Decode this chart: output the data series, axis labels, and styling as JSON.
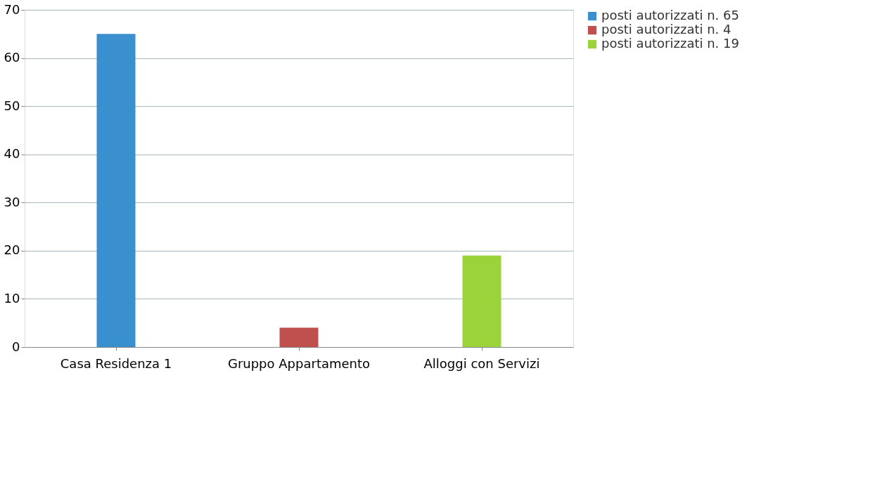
{
  "chart_data": {
    "type": "bar",
    "categories": [
      "Casa Residenza 1",
      "Gruppo Appartamento",
      "Alloggi con Servizi"
    ],
    "series": [
      {
        "name": "posti autorizzati n. 65",
        "color": "#3a8fce",
        "values": [
          65,
          null,
          null
        ]
      },
      {
        "name": "posti autorizzati n. 4",
        "color": "#c0504d",
        "values": [
          null,
          4,
          null
        ]
      },
      {
        "name": "posti autorizzati n. 19",
        "color": "#9bd43a",
        "values": [
          null,
          null,
          19
        ]
      }
    ],
    "ylim": [
      0,
      70
    ],
    "yticks": [
      0,
      10,
      20,
      30,
      40,
      50,
      60,
      70
    ],
    "grid": "y",
    "legend": "right"
  }
}
